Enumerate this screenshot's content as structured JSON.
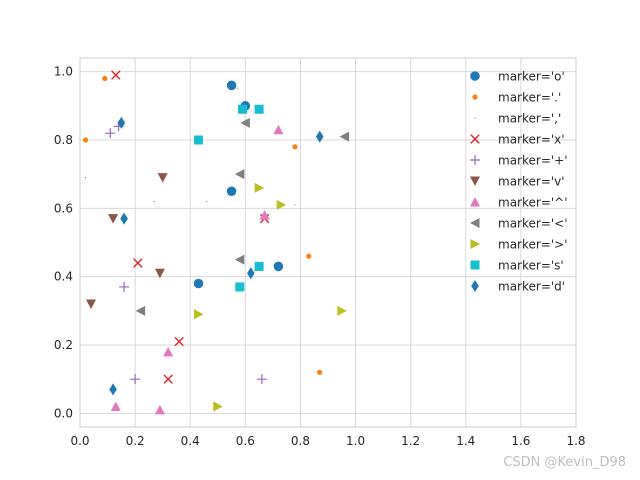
{
  "watermark": "CSDN @Kevin_D98",
  "chart_data": {
    "type": "scatter",
    "title": "",
    "xlabel": "",
    "ylabel": "",
    "xlim": [
      0,
      1.8
    ],
    "ylim": [
      -0.04,
      1.04
    ],
    "x_ticks": [
      0.0,
      0.2,
      0.4,
      0.6,
      0.8,
      1.0,
      1.2,
      1.4,
      1.6,
      1.8
    ],
    "x_tick_labels": [
      "0.0",
      "0.2",
      "0.4",
      "0.6",
      "0.8",
      "1.0",
      "1.2",
      "1.4",
      "1.6",
      "1.8"
    ],
    "y_ticks": [
      0.0,
      0.2,
      0.4,
      0.6,
      0.8,
      1.0
    ],
    "y_tick_labels": [
      "0.0",
      "0.2",
      "0.4",
      "0.6",
      "0.8",
      "1.0"
    ],
    "grid": true,
    "legend_position": "top-right",
    "series": [
      {
        "name": "marker='o'",
        "marker": "o",
        "color": "#1f77b4",
        "points": [
          [
            0.55,
            0.96
          ],
          [
            0.6,
            0.9
          ],
          [
            0.55,
            0.65
          ],
          [
            0.43,
            0.38
          ],
          [
            0.72,
            0.43
          ]
        ]
      },
      {
        "name": "marker='.'",
        "marker": ".",
        "color": "#ff7f0e",
        "points": [
          [
            0.09,
            0.98
          ],
          [
            0.02,
            0.8
          ],
          [
            0.78,
            0.78
          ],
          [
            0.83,
            0.46
          ],
          [
            0.87,
            0.12
          ]
        ]
      },
      {
        "name": "marker=','",
        "marker": ",",
        "color": "#2ca02c",
        "points": [
          [
            0.57,
            0.95
          ],
          [
            0.02,
            0.69
          ],
          [
            0.27,
            0.62
          ],
          [
            0.46,
            0.62
          ],
          [
            0.78,
            0.61
          ]
        ]
      },
      {
        "name": "marker='x'",
        "marker": "x",
        "color": "#d62728",
        "points": [
          [
            0.13,
            0.99
          ],
          [
            0.67,
            0.57
          ],
          [
            0.21,
            0.44
          ],
          [
            0.36,
            0.21
          ],
          [
            0.32,
            0.1
          ]
        ]
      },
      {
        "name": "marker='+'",
        "marker": "+",
        "color": "#9467bd",
        "points": [
          [
            0.11,
            0.82
          ],
          [
            0.14,
            0.84
          ],
          [
            0.16,
            0.37
          ],
          [
            0.2,
            0.1
          ],
          [
            0.66,
            0.1
          ]
        ]
      },
      {
        "name": "marker='v'",
        "marker": "v",
        "color": "#8c564b",
        "points": [
          [
            0.3,
            0.69
          ],
          [
            0.12,
            0.57
          ],
          [
            0.29,
            0.41
          ],
          [
            0.04,
            0.32
          ]
        ]
      },
      {
        "name": "marker='^'",
        "marker": "^",
        "color": "#e377c2",
        "points": [
          [
            0.72,
            0.83
          ],
          [
            0.67,
            0.58
          ],
          [
            0.32,
            0.18
          ],
          [
            0.13,
            0.02
          ],
          [
            0.29,
            0.01
          ]
        ]
      },
      {
        "name": "marker='<'",
        "marker": "<",
        "color": "#7f7f7f",
        "points": [
          [
            0.6,
            0.85
          ],
          [
            0.96,
            0.81
          ],
          [
            0.58,
            0.7
          ],
          [
            0.58,
            0.45
          ],
          [
            0.22,
            0.3
          ]
        ]
      },
      {
        "name": "marker='>'",
        "marker": ">",
        "color": "#bcbd22",
        "points": [
          [
            0.65,
            0.66
          ],
          [
            0.73,
            0.61
          ],
          [
            0.43,
            0.29
          ],
          [
            0.95,
            0.3
          ],
          [
            0.5,
            0.02
          ]
        ]
      },
      {
        "name": "marker='s'",
        "marker": "s",
        "color": "#17becf",
        "points": [
          [
            0.59,
            0.89
          ],
          [
            0.65,
            0.89
          ],
          [
            0.43,
            0.8
          ],
          [
            0.65,
            0.43
          ],
          [
            0.58,
            0.37
          ]
        ]
      },
      {
        "name": "marker='d'",
        "marker": "d",
        "color": "#1f77b4",
        "points": [
          [
            0.15,
            0.85
          ],
          [
            0.87,
            0.81
          ],
          [
            0.16,
            0.57
          ],
          [
            0.62,
            0.41
          ],
          [
            0.12,
            0.07
          ]
        ]
      }
    ]
  }
}
